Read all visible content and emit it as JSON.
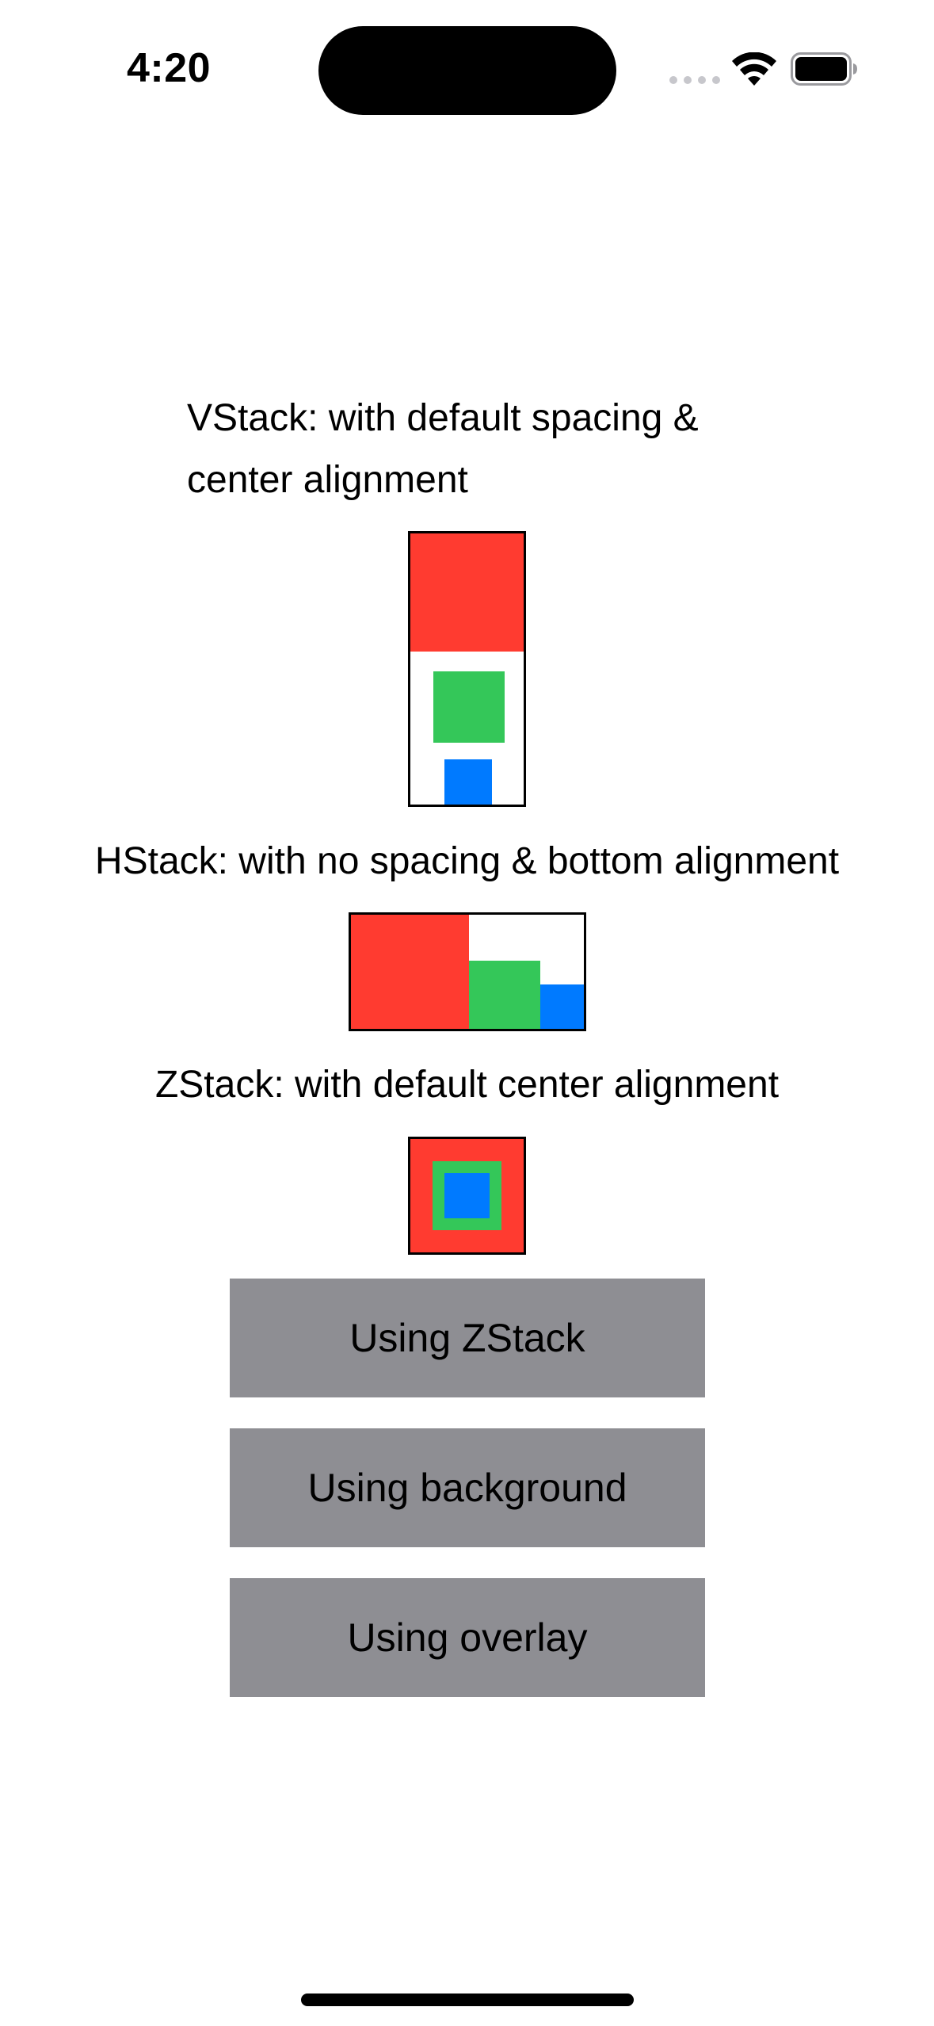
{
  "status_bar": {
    "time": "4:20",
    "icons": [
      "signal-dots-icon",
      "wifi-icon",
      "battery-icon"
    ]
  },
  "captions": {
    "vstack": "VStack: with default spacing & center alignment",
    "hstack": "HStack: with no spacing & bottom alignment",
    "zstack": "ZStack: with default center alignment"
  },
  "colors": {
    "red": "#ff3b30",
    "green": "#34c759",
    "blue": "#007aff",
    "button_gray": "#8e8e93"
  },
  "buttons": {
    "zstack_label": "Using ZStack",
    "background_label": "Using background",
    "overlay_label": "Using overlay"
  }
}
